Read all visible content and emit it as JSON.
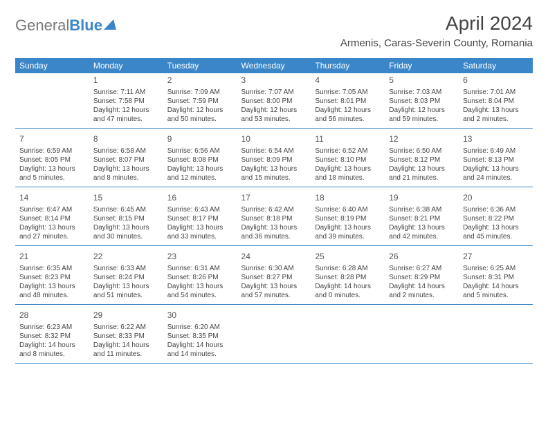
{
  "brand": {
    "general": "General",
    "blue": "Blue"
  },
  "title": "April 2024",
  "location": "Armenis, Caras-Severin County, Romania",
  "dow": [
    "Sunday",
    "Monday",
    "Tuesday",
    "Wednesday",
    "Thursday",
    "Friday",
    "Saturday"
  ],
  "colors": {
    "accent": "#3a86c8",
    "text": "#444444",
    "background": "#ffffff"
  },
  "weeks": [
    [
      null,
      {
        "n": "1",
        "sr": "Sunrise: 7:11 AM",
        "ss": "Sunset: 7:58 PM",
        "d1": "Daylight: 12 hours",
        "d2": "and 47 minutes."
      },
      {
        "n": "2",
        "sr": "Sunrise: 7:09 AM",
        "ss": "Sunset: 7:59 PM",
        "d1": "Daylight: 12 hours",
        "d2": "and 50 minutes."
      },
      {
        "n": "3",
        "sr": "Sunrise: 7:07 AM",
        "ss": "Sunset: 8:00 PM",
        "d1": "Daylight: 12 hours",
        "d2": "and 53 minutes."
      },
      {
        "n": "4",
        "sr": "Sunrise: 7:05 AM",
        "ss": "Sunset: 8:01 PM",
        "d1": "Daylight: 12 hours",
        "d2": "and 56 minutes."
      },
      {
        "n": "5",
        "sr": "Sunrise: 7:03 AM",
        "ss": "Sunset: 8:03 PM",
        "d1": "Daylight: 12 hours",
        "d2": "and 59 minutes."
      },
      {
        "n": "6",
        "sr": "Sunrise: 7:01 AM",
        "ss": "Sunset: 8:04 PM",
        "d1": "Daylight: 13 hours",
        "d2": "and 2 minutes."
      }
    ],
    [
      {
        "n": "7",
        "sr": "Sunrise: 6:59 AM",
        "ss": "Sunset: 8:05 PM",
        "d1": "Daylight: 13 hours",
        "d2": "and 5 minutes."
      },
      {
        "n": "8",
        "sr": "Sunrise: 6:58 AM",
        "ss": "Sunset: 8:07 PM",
        "d1": "Daylight: 13 hours",
        "d2": "and 8 minutes."
      },
      {
        "n": "9",
        "sr": "Sunrise: 6:56 AM",
        "ss": "Sunset: 8:08 PM",
        "d1": "Daylight: 13 hours",
        "d2": "and 12 minutes."
      },
      {
        "n": "10",
        "sr": "Sunrise: 6:54 AM",
        "ss": "Sunset: 8:09 PM",
        "d1": "Daylight: 13 hours",
        "d2": "and 15 minutes."
      },
      {
        "n": "11",
        "sr": "Sunrise: 6:52 AM",
        "ss": "Sunset: 8:10 PM",
        "d1": "Daylight: 13 hours",
        "d2": "and 18 minutes."
      },
      {
        "n": "12",
        "sr": "Sunrise: 6:50 AM",
        "ss": "Sunset: 8:12 PM",
        "d1": "Daylight: 13 hours",
        "d2": "and 21 minutes."
      },
      {
        "n": "13",
        "sr": "Sunrise: 6:49 AM",
        "ss": "Sunset: 8:13 PM",
        "d1": "Daylight: 13 hours",
        "d2": "and 24 minutes."
      }
    ],
    [
      {
        "n": "14",
        "sr": "Sunrise: 6:47 AM",
        "ss": "Sunset: 8:14 PM",
        "d1": "Daylight: 13 hours",
        "d2": "and 27 minutes."
      },
      {
        "n": "15",
        "sr": "Sunrise: 6:45 AM",
        "ss": "Sunset: 8:15 PM",
        "d1": "Daylight: 13 hours",
        "d2": "and 30 minutes."
      },
      {
        "n": "16",
        "sr": "Sunrise: 6:43 AM",
        "ss": "Sunset: 8:17 PM",
        "d1": "Daylight: 13 hours",
        "d2": "and 33 minutes."
      },
      {
        "n": "17",
        "sr": "Sunrise: 6:42 AM",
        "ss": "Sunset: 8:18 PM",
        "d1": "Daylight: 13 hours",
        "d2": "and 36 minutes."
      },
      {
        "n": "18",
        "sr": "Sunrise: 6:40 AM",
        "ss": "Sunset: 8:19 PM",
        "d1": "Daylight: 13 hours",
        "d2": "and 39 minutes."
      },
      {
        "n": "19",
        "sr": "Sunrise: 6:38 AM",
        "ss": "Sunset: 8:21 PM",
        "d1": "Daylight: 13 hours",
        "d2": "and 42 minutes."
      },
      {
        "n": "20",
        "sr": "Sunrise: 6:36 AM",
        "ss": "Sunset: 8:22 PM",
        "d1": "Daylight: 13 hours",
        "d2": "and 45 minutes."
      }
    ],
    [
      {
        "n": "21",
        "sr": "Sunrise: 6:35 AM",
        "ss": "Sunset: 8:23 PM",
        "d1": "Daylight: 13 hours",
        "d2": "and 48 minutes."
      },
      {
        "n": "22",
        "sr": "Sunrise: 6:33 AM",
        "ss": "Sunset: 8:24 PM",
        "d1": "Daylight: 13 hours",
        "d2": "and 51 minutes."
      },
      {
        "n": "23",
        "sr": "Sunrise: 6:31 AM",
        "ss": "Sunset: 8:26 PM",
        "d1": "Daylight: 13 hours",
        "d2": "and 54 minutes."
      },
      {
        "n": "24",
        "sr": "Sunrise: 6:30 AM",
        "ss": "Sunset: 8:27 PM",
        "d1": "Daylight: 13 hours",
        "d2": "and 57 minutes."
      },
      {
        "n": "25",
        "sr": "Sunrise: 6:28 AM",
        "ss": "Sunset: 8:28 PM",
        "d1": "Daylight: 14 hours",
        "d2": "and 0 minutes."
      },
      {
        "n": "26",
        "sr": "Sunrise: 6:27 AM",
        "ss": "Sunset: 8:29 PM",
        "d1": "Daylight: 14 hours",
        "d2": "and 2 minutes."
      },
      {
        "n": "27",
        "sr": "Sunrise: 6:25 AM",
        "ss": "Sunset: 8:31 PM",
        "d1": "Daylight: 14 hours",
        "d2": "and 5 minutes."
      }
    ],
    [
      {
        "n": "28",
        "sr": "Sunrise: 6:23 AM",
        "ss": "Sunset: 8:32 PM",
        "d1": "Daylight: 14 hours",
        "d2": "and 8 minutes."
      },
      {
        "n": "29",
        "sr": "Sunrise: 6:22 AM",
        "ss": "Sunset: 8:33 PM",
        "d1": "Daylight: 14 hours",
        "d2": "and 11 minutes."
      },
      {
        "n": "30",
        "sr": "Sunrise: 6:20 AM",
        "ss": "Sunset: 8:35 PM",
        "d1": "Daylight: 14 hours",
        "d2": "and 14 minutes."
      },
      null,
      null,
      null,
      null
    ]
  ]
}
